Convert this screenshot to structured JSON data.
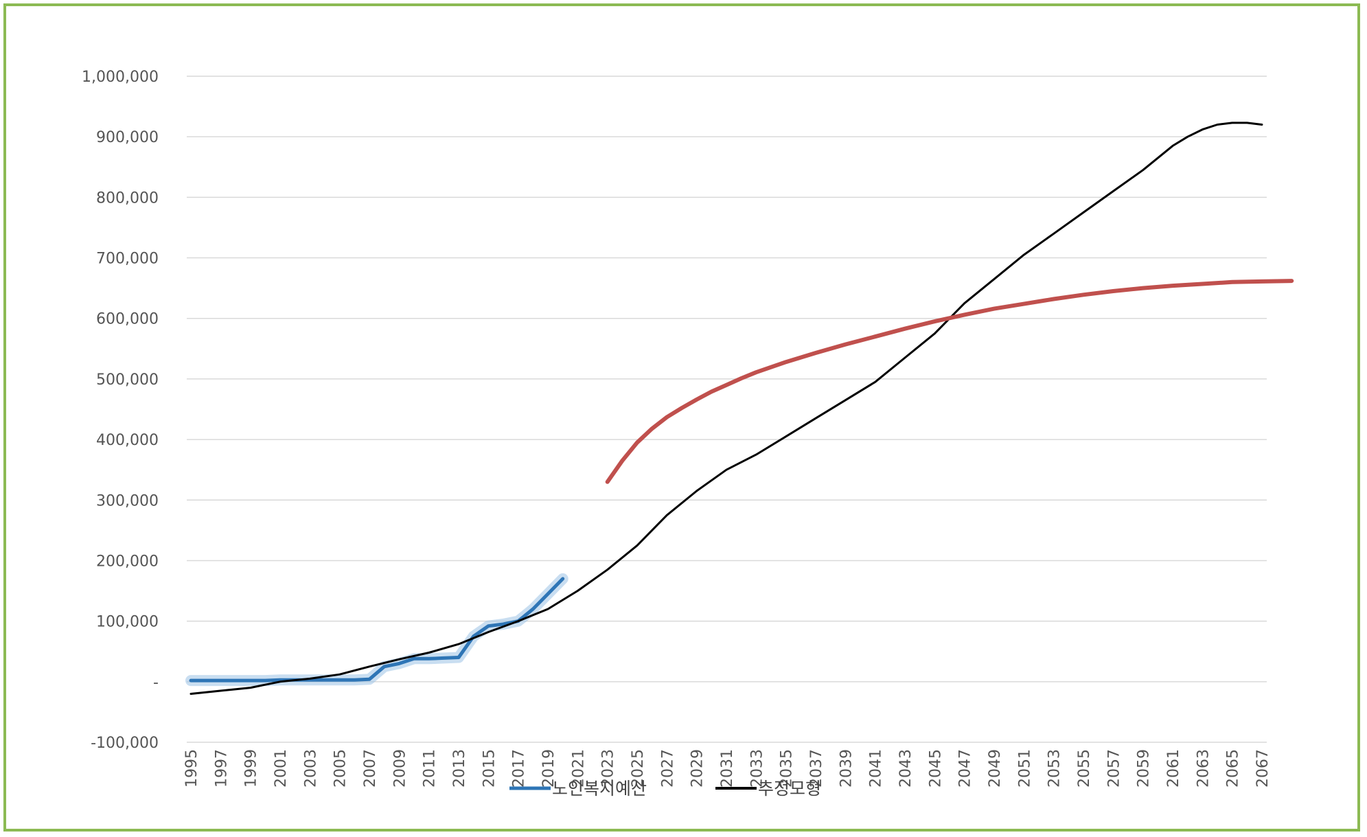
{
  "chart_data": {
    "type": "line",
    "title": "",
    "xlabel": "",
    "ylabel": "",
    "ylim": [
      -100000,
      1000000
    ],
    "y_ticks": [
      {
        "value": 1000000,
        "label": "1,000,000"
      },
      {
        "value": 900000,
        "label": "900,000"
      },
      {
        "value": 800000,
        "label": "800,000"
      },
      {
        "value": 700000,
        "label": "700,000"
      },
      {
        "value": 600000,
        "label": "600,000"
      },
      {
        "value": 500000,
        "label": "500,000"
      },
      {
        "value": 400000,
        "label": "400,000"
      },
      {
        "value": 300000,
        "label": "300,000"
      },
      {
        "value": 200000,
        "label": "200,000"
      },
      {
        "value": 100000,
        "label": "100,000"
      },
      {
        "value": 0,
        "label": "-"
      },
      {
        "value": -100000,
        "label": "-100,000"
      }
    ],
    "x_tick_labels": [
      "1995",
      "1997",
      "1999",
      "2001",
      "2003",
      "2005",
      "2007",
      "2009",
      "2011",
      "2013",
      "2015",
      "2017",
      "2019",
      "2021",
      "2023",
      "2025",
      "2027",
      "2029",
      "2031",
      "2033",
      "2035",
      "2037",
      "2039",
      "2041",
      "2043",
      "2045",
      "2047",
      "2049",
      "2051",
      "2053",
      "2055",
      "2057",
      "2059",
      "2061",
      "2063",
      "2065",
      "2067"
    ],
    "x_range": [
      1995,
      2067
    ],
    "grid": "horizontal",
    "legend_position": "bottom",
    "series": [
      {
        "name": "노인복지예산",
        "color": "#2e75b6",
        "x": [
          1995,
          1996,
          1997,
          1998,
          1999,
          2000,
          2001,
          2002,
          2003,
          2004,
          2005,
          2006,
          2007,
          2008,
          2009,
          2010,
          2011,
          2012,
          2013,
          2014,
          2015,
          2016,
          2017,
          2018,
          2019,
          2020
        ],
        "y": [
          2000,
          2000,
          2000,
          2000,
          2000,
          2000,
          3000,
          3000,
          3000,
          3000,
          3000,
          3000,
          4000,
          25000,
          30000,
          38000,
          38000,
          39000,
          40000,
          75000,
          92000,
          95000,
          100000,
          120000,
          145000,
          170000
        ]
      },
      {
        "name": "추정모형",
        "color": "#000000",
        "x": [
          1995,
          1997,
          1999,
          2000,
          2001,
          2003,
          2005,
          2007,
          2009,
          2011,
          2013,
          2015,
          2017,
          2019,
          2021,
          2023,
          2025,
          2027,
          2029,
          2031,
          2033,
          2035,
          2037,
          2039,
          2041,
          2043,
          2045,
          2047,
          2049,
          2051,
          2053,
          2055,
          2057,
          2059,
          2061,
          2062,
          2063,
          2064,
          2065,
          2066,
          2067
        ],
        "y": [
          -20000,
          -15000,
          -10000,
          -5000,
          0,
          5000,
          12000,
          25000,
          37000,
          48000,
          62000,
          82000,
          100000,
          120000,
          150000,
          185000,
          225000,
          275000,
          315000,
          350000,
          375000,
          405000,
          435000,
          465000,
          495000,
          535000,
          575000,
          625000,
          665000,
          705000,
          740000,
          775000,
          810000,
          845000,
          885000,
          900000,
          912000,
          920000,
          923000,
          923000,
          920000
        ]
      },
      {
        "name": "",
        "color": "#c0504d",
        "x": [
          2023,
          2024,
          2025,
          2026,
          2027,
          2028,
          2029,
          2030,
          2031,
          2032,
          2033,
          2035,
          2037,
          2039,
          2041,
          2043,
          2045,
          2047,
          2049,
          2051,
          2053,
          2055,
          2057,
          2059,
          2061,
          2063,
          2065,
          2067,
          2069
        ],
        "y": [
          330000,
          365000,
          395000,
          418000,
          437000,
          452000,
          466000,
          479000,
          490000,
          501000,
          511000,
          528000,
          543000,
          557000,
          570000,
          583000,
          595000,
          606000,
          616000,
          624000,
          632000,
          639000,
          645000,
          650000,
          654000,
          657000,
          660000,
          661000,
          662000
        ]
      }
    ]
  }
}
